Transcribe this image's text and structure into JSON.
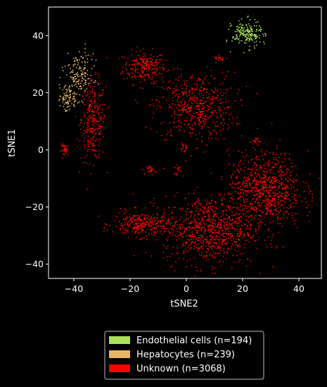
{
  "chart_data": {
    "type": "scatter",
    "title": "",
    "xlabel": "tSNE2",
    "ylabel": "tSNE1",
    "xlim": [
      -49,
      48
    ],
    "ylim": [
      -45,
      50
    ],
    "xticks": [
      -40,
      -20,
      0,
      20,
      40
    ],
    "yticks": [
      -40,
      -20,
      0,
      20,
      40
    ],
    "grid": false,
    "background": "#000000",
    "legend_position": "bottom-center (below plot)",
    "series": [
      {
        "name": "Endothelial cells (n=194)",
        "label": "Endothelial cells",
        "count": 194,
        "color": "#a8e05a",
        "clusters": [
          {
            "x": 21.5,
            "y": 40.5,
            "sx": 2.6,
            "sy": 2.3,
            "n": 190
          },
          {
            "x": 27.5,
            "y": 40.5,
            "sx": 0.4,
            "sy": 0.4,
            "n": 4
          }
        ]
      },
      {
        "name": "Hepatocytes (n=239)",
        "label": "Hepatocytes",
        "count": 239,
        "color": "#e7b665",
        "clusters": [
          {
            "x": -38,
            "y": 26,
            "sx": 2.5,
            "sy": 4.0,
            "n": 150
          },
          {
            "x": -42,
            "y": 18,
            "sx": 1.8,
            "sy": 2.5,
            "n": 89
          }
        ]
      },
      {
        "name": "Unknown (n=3068)",
        "label": "Unknown",
        "count": 3068,
        "color": "#ff0000",
        "clusters": [
          {
            "x": -15,
            "y": 29,
            "sx": 3.8,
            "sy": 2.8,
            "n": 230
          },
          {
            "x": -33,
            "y": 10,
            "sx": 2.2,
            "sy": 7.0,
            "n": 280
          },
          {
            "x": 3,
            "y": 15,
            "sx": 7.0,
            "sy": 6.0,
            "n": 520
          },
          {
            "x": -43,
            "y": 0,
            "sx": 0.8,
            "sy": 1.0,
            "n": 35
          },
          {
            "x": -12.5,
            "y": -7,
            "sx": 0.8,
            "sy": 0.8,
            "n": 25
          },
          {
            "x": -3,
            "y": -7,
            "sx": 0.6,
            "sy": 0.8,
            "n": 15
          },
          {
            "x": -1,
            "y": 0.5,
            "sx": 0.8,
            "sy": 0.7,
            "n": 15
          },
          {
            "x": 12,
            "y": 32,
            "sx": 1.2,
            "sy": 0.5,
            "n": 18
          },
          {
            "x": 25,
            "y": 3,
            "sx": 1.0,
            "sy": 1.0,
            "n": 15
          },
          {
            "x": -16,
            "y": -26,
            "sx": 5.0,
            "sy": 2.2,
            "n": 280
          },
          {
            "x": 8,
            "y": -28,
            "sx": 8.0,
            "sy": 6.0,
            "n": 820
          },
          {
            "x": 28,
            "y": -14,
            "sx": 6.5,
            "sy": 6.5,
            "n": 815
          }
        ]
      }
    ]
  }
}
